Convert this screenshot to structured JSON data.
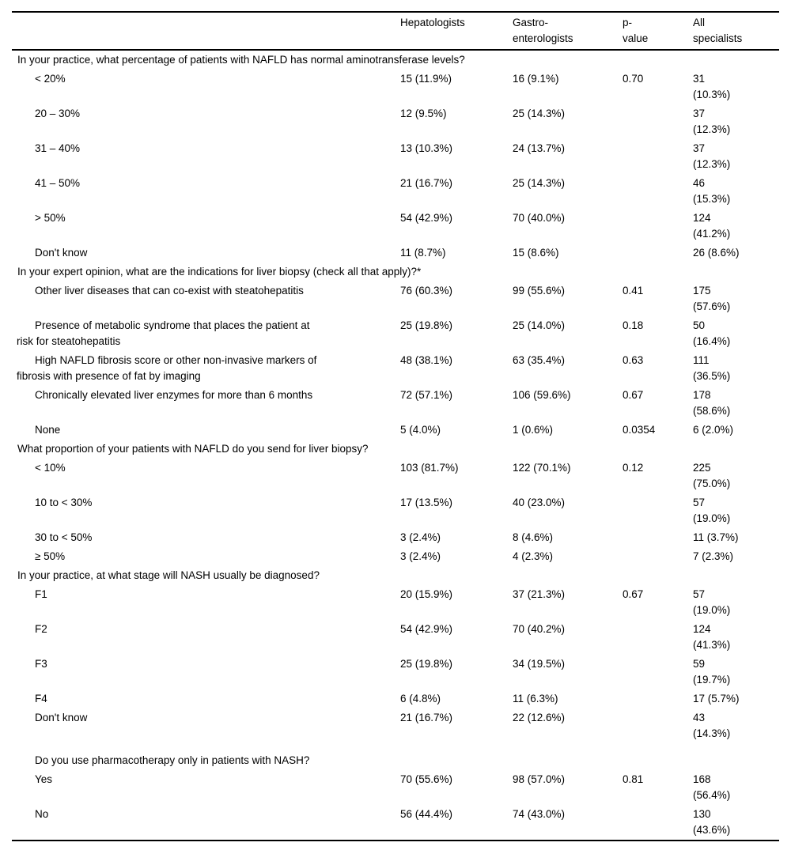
{
  "page": {
    "background_color": "#ffffff",
    "text_color": "#000000",
    "rule_color": "#000000"
  },
  "table": {
    "columns": [
      "",
      "Hepatologists",
      "Gastro-\nenterologists",
      "p-\nvalue",
      "All\nspecialists"
    ],
    "sections": [
      {
        "question": "In your practice, what percentage of patients with NAFLD has normal aminotransferase levels?",
        "indented": false,
        "extra_space_above": false,
        "rows": [
          {
            "cells": [
              "< 20%",
              "15 (11.9%)",
              "16 (9.1%)",
              "0.70",
              "31\n(10.3%)"
            ]
          },
          {
            "cells": [
              "20 – 30%",
              "12 (9.5%)",
              "25 (14.3%)",
              "",
              "37\n(12.3%)"
            ]
          },
          {
            "cells": [
              "31 – 40%",
              "13 (10.3%)",
              "24 (13.7%)",
              "",
              "37\n(12.3%)"
            ]
          },
          {
            "cells": [
              "41 – 50%",
              "21 (16.7%)",
              "25 (14.3%)",
              "",
              "46\n(15.3%)"
            ]
          },
          {
            "cells": [
              "> 50%",
              "54 (42.9%)",
              "70 (40.0%)",
              "",
              "124\n(41.2%)"
            ]
          },
          {
            "cells": [
              "Don't know",
              "11 (8.7%)",
              "15 (8.6%)",
              "",
              "26 (8.6%)"
            ]
          }
        ]
      },
      {
        "question": "In your expert opinion, what are the indications for liver biopsy (check all that apply)?*",
        "indented": false,
        "extra_space_above": false,
        "rows": [
          {
            "cells": [
              "Other liver diseases that can co-exist with steatohepatitis",
              "76 (60.3%)",
              "99 (55.6%)",
              "0.41",
              "175\n(57.6%)"
            ]
          },
          {
            "cells": [
              "Presence of metabolic syndrome that places the patient at\nrisk for steatohepatitis",
              "25 (19.8%)",
              "25 (14.0%)",
              "0.18",
              "50\n(16.4%)"
            ]
          },
          {
            "cells": [
              "High NAFLD fibrosis score or other non-invasive markers of\nfibrosis with presence of fat by imaging",
              "48 (38.1%)",
              "63 (35.4%)",
              "0.63",
              "111\n(36.5%)"
            ]
          },
          {
            "cells": [
              "Chronically elevated liver enzymes for more than 6 months",
              "72 (57.1%)",
              "106 (59.6%)",
              "0.67",
              "178\n(58.6%)"
            ]
          },
          {
            "cells": [
              "None",
              "5 (4.0%)",
              "1 (0.6%)",
              "0.0354",
              "6 (2.0%)"
            ]
          }
        ]
      },
      {
        "question": "What proportion of your patients with NAFLD do you send for liver biopsy?",
        "indented": false,
        "extra_space_above": false,
        "rows": [
          {
            "cells": [
              "< 10%",
              "103 (81.7%)",
              "122 (70.1%)",
              "0.12",
              "225\n(75.0%)"
            ]
          },
          {
            "cells": [
              "10 to < 30%",
              "17 (13.5%)",
              "40 (23.0%)",
              "",
              "57\n(19.0%)"
            ]
          },
          {
            "cells": [
              "30 to < 50%",
              "3 (2.4%)",
              "8 (4.6%)",
              "",
              "11 (3.7%)"
            ]
          },
          {
            "cells": [
              "≥ 50%",
              "3 (2.4%)",
              "4 (2.3%)",
              "",
              "7 (2.3%)"
            ]
          }
        ]
      },
      {
        "question": "In your practice, at what stage will NASH usually be diagnosed?",
        "indented": false,
        "extra_space_above": false,
        "rows": [
          {
            "cells": [
              "F1",
              "20 (15.9%)",
              "37 (21.3%)",
              "0.67",
              "57\n(19.0%)"
            ]
          },
          {
            "cells": [
              "F2",
              "54 (42.9%)",
              "70 (40.2%)",
              "",
              "124\n(41.3%)"
            ]
          },
          {
            "cells": [
              "F3",
              "25 (19.8%)",
              "34 (19.5%)",
              "",
              "59\n(19.7%)"
            ]
          },
          {
            "cells": [
              "F4",
              "6 (4.8%)",
              "11 (6.3%)",
              "",
              "17 (5.7%)"
            ]
          },
          {
            "cells": [
              "Don't know",
              "21 (16.7%)",
              "22 (12.6%)",
              "",
              "43\n(14.3%)"
            ]
          }
        ]
      },
      {
        "question": "Do you use pharmacotherapy only in patients with NASH?",
        "indented": true,
        "extra_space_above": true,
        "rows": [
          {
            "cells": [
              "Yes",
              "70 (55.6%)",
              "98 (57.0%)",
              "0.81",
              "168\n(56.4%)"
            ]
          },
          {
            "cells": [
              "No",
              "56 (44.4%)",
              "74 (43.0%)",
              "",
              "130\n(43.6%)"
            ]
          }
        ]
      }
    ]
  }
}
